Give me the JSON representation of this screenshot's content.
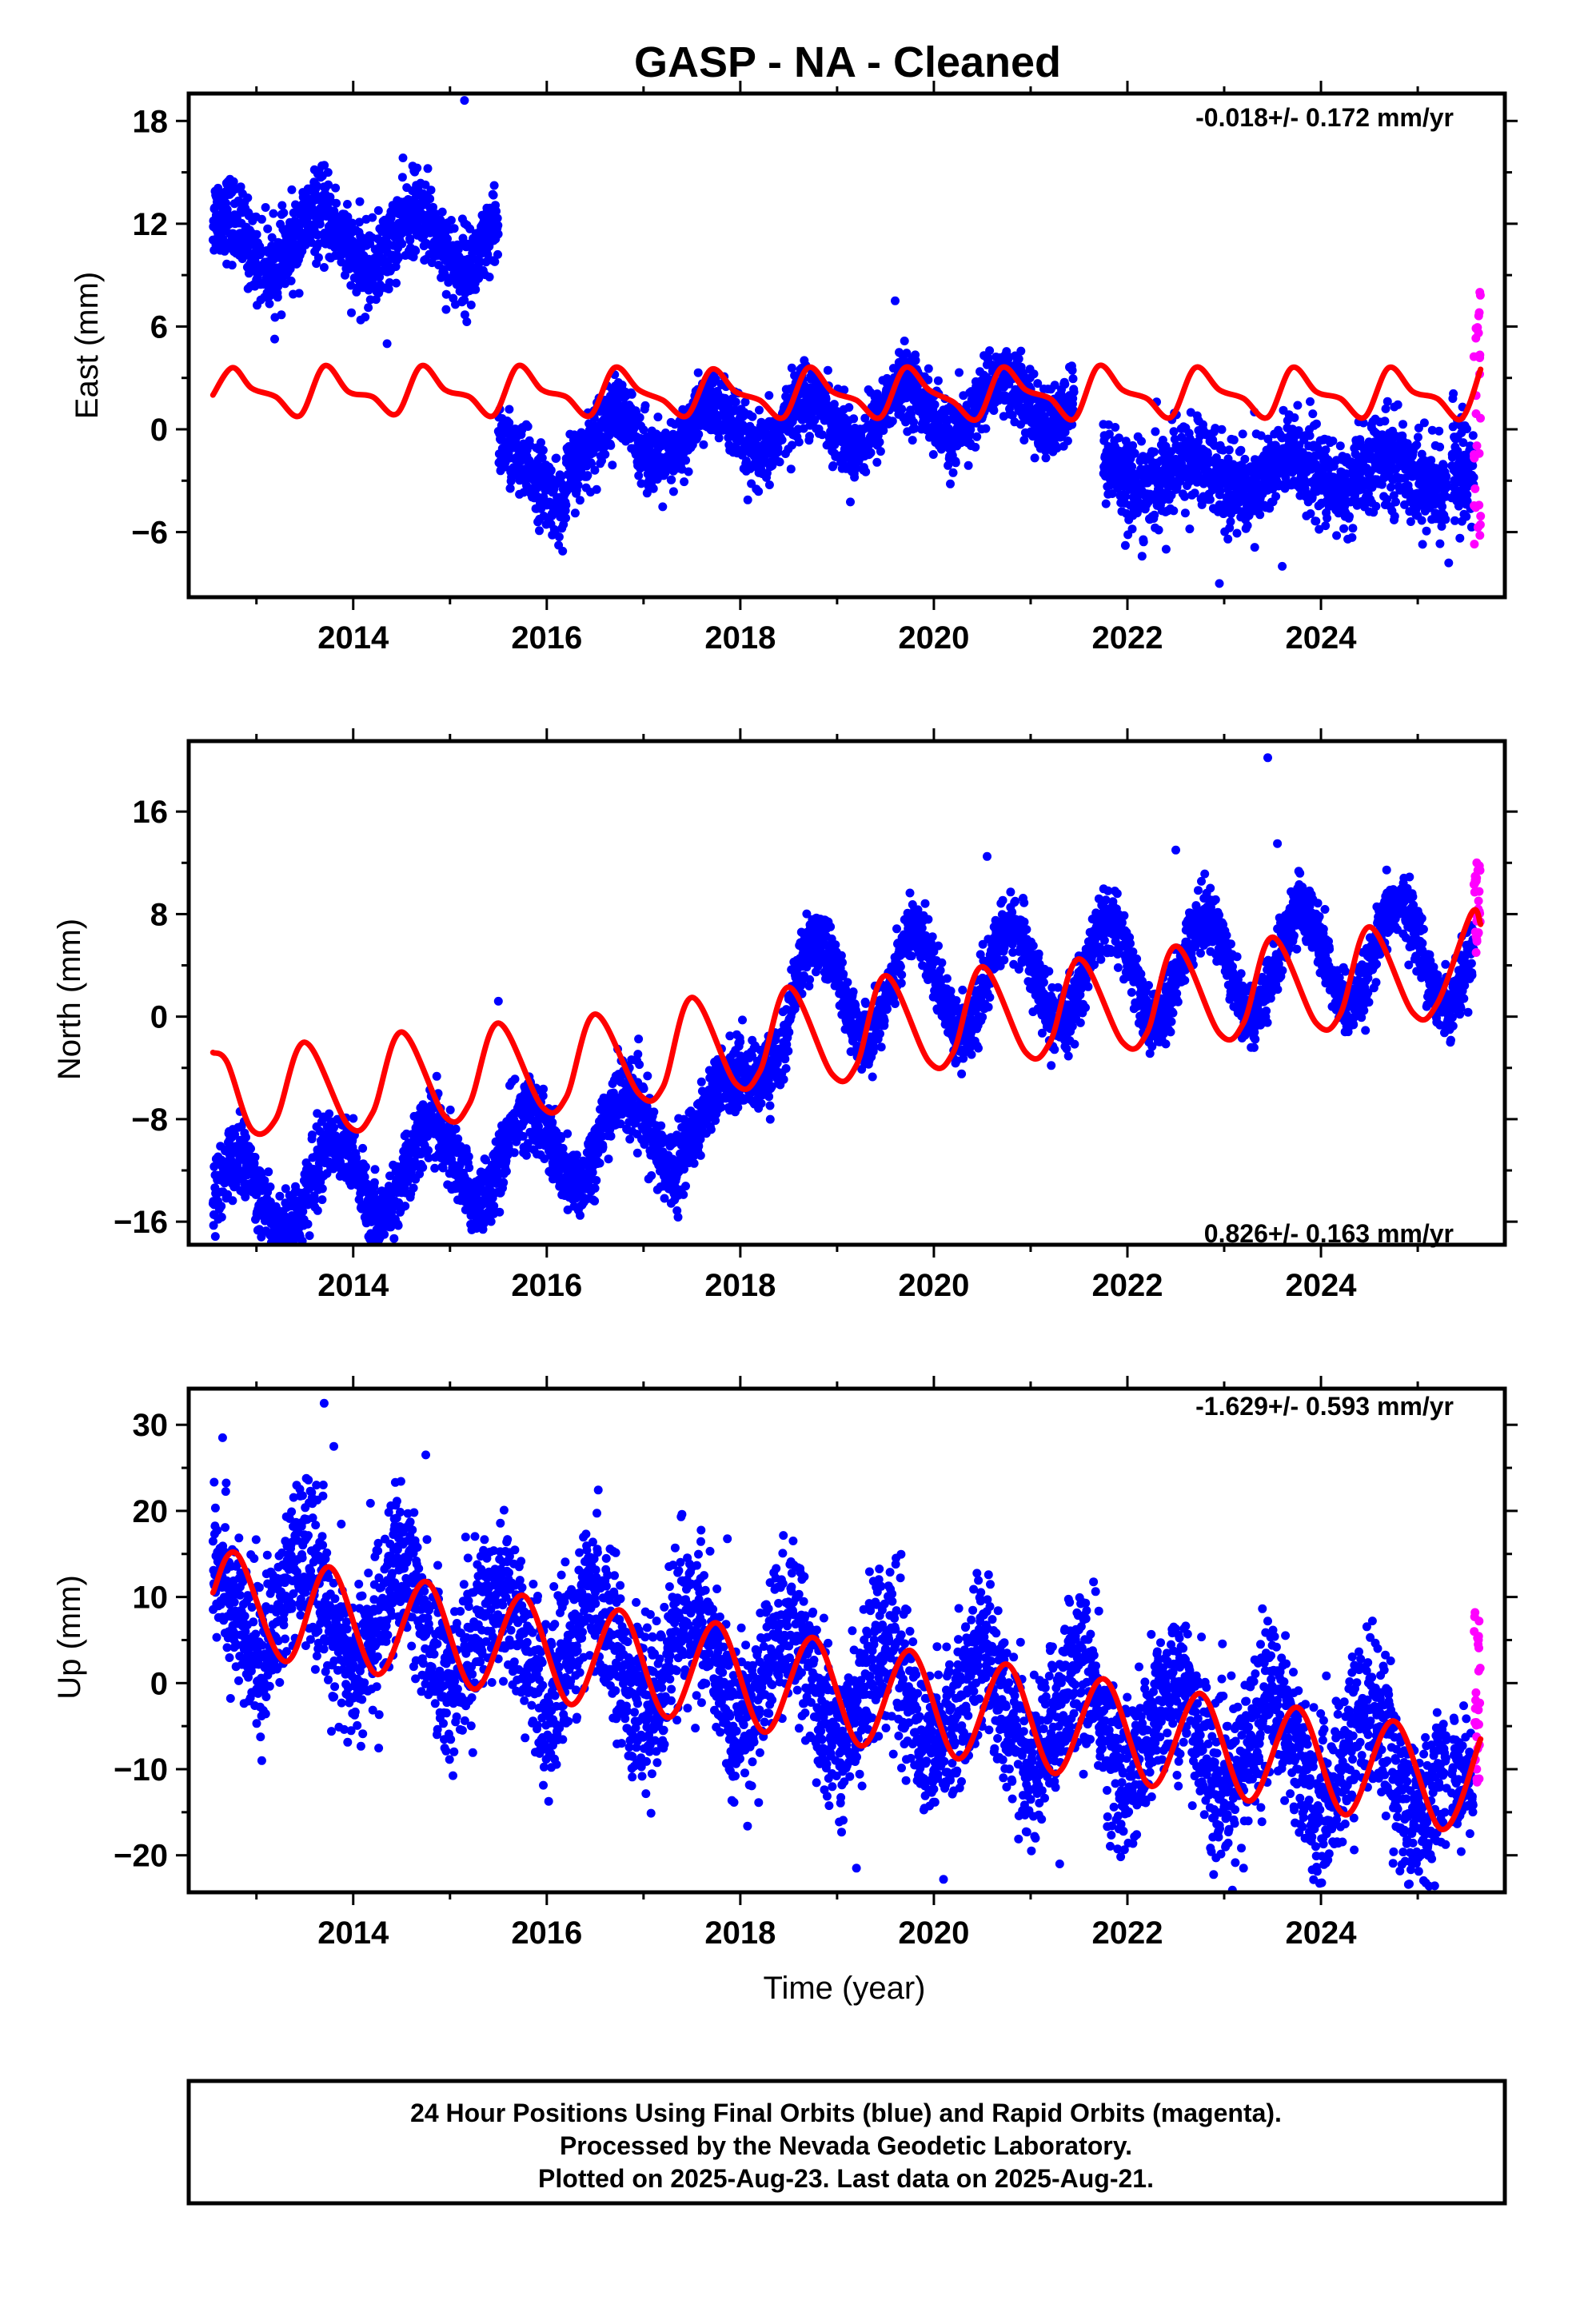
{
  "title": "GASP  - NA - Cleaned",
  "xlabel": "Time (year)",
  "footer": {
    "lines": [
      "24 Hour Positions Using Final Orbits (blue) and Rapid Orbits (magenta).",
      "Processed by the Nevada Geodetic Laboratory.",
      "Plotted on 2025-Aug-23. Last data on 2025-Aug-21."
    ]
  },
  "colors": {
    "final_orbits": "#0000ff",
    "rapid_orbits": "#ff00ff",
    "model": "#ff0000",
    "frame": "#000000"
  },
  "chart_data": [
    {
      "type": "scatter",
      "name": "east",
      "ylabel": "East (mm)",
      "rate_label": "-0.018+/- 0.172 mm/yr",
      "rate_position": "top-right",
      "xlim": [
        2012.3,
        2025.9
      ],
      "ylim": [
        -9.8,
        19.6
      ],
      "xticks": [
        2014,
        2016,
        2018,
        2020,
        2022,
        2024
      ],
      "yticks": [
        -6,
        0,
        6,
        12,
        18
      ],
      "grid": false,
      "segments": [
        {
          "start": 2012.55,
          "end": 2015.5,
          "offset": 11.0,
          "trend": 0.0,
          "amp": 1.6,
          "phase": 0.4,
          "noise": 1.2
        },
        {
          "start": 2015.5,
          "end": 2016.2,
          "offset": -0.5,
          "trend": -6.0,
          "amp": 0.0,
          "phase": 0.0,
          "noise": 1.1
        },
        {
          "start": 2016.2,
          "end": 2021.45,
          "offset": -1.0,
          "trend": 0.55,
          "amp": 1.6,
          "phase": 0.45,
          "noise": 1.0
        },
        {
          "start": 2021.75,
          "end": 2025.3,
          "offset": -2.6,
          "trend": 0.0,
          "amp": 0.9,
          "phase": 0.45,
          "noise": 1.3
        },
        {
          "start": 2025.35,
          "end": 2025.58,
          "offset": -2.3,
          "trend": 0.0,
          "amp": 0.0,
          "phase": 0.0,
          "noise": 1.6
        }
      ],
      "outliers": [
        [
          2015.15,
          19.2
        ],
        [
          2014.35,
          5.0
        ],
        [
          2019.6,
          7.5
        ],
        [
          2022.95,
          -9.0
        ],
        [
          2022.4,
          -7.0
        ],
        [
          2023.6,
          -8.0
        ],
        [
          2025.32,
          -7.8
        ]
      ],
      "rapid": {
        "start": 2025.58,
        "end": 2025.65,
        "min": -6.7,
        "max": 8.0
      },
      "model": {
        "points": [
          [
            2012.55,
            2.0
          ],
          [
            2012.75,
            3.6
          ],
          [
            2012.95,
            2.4
          ],
          [
            2013.2,
            1.9
          ],
          [
            2013.45,
            0.8
          ],
          [
            2013.7,
            3.7
          ],
          [
            2013.95,
            2.2
          ],
          [
            2014.2,
            1.9
          ],
          [
            2014.45,
            0.9
          ],
          [
            2014.7,
            3.7
          ],
          [
            2014.95,
            2.3
          ],
          [
            2015.2,
            1.9
          ],
          [
            2015.45,
            0.8
          ],
          [
            2015.7,
            3.7
          ],
          [
            2015.95,
            2.3
          ],
          [
            2016.2,
            1.9
          ],
          [
            2016.45,
            0.8
          ],
          [
            2016.7,
            3.6
          ],
          [
            2016.95,
            2.3
          ],
          [
            2017.2,
            1.7
          ],
          [
            2017.45,
            0.8
          ],
          [
            2017.7,
            3.5
          ],
          [
            2017.95,
            2.2
          ],
          [
            2018.2,
            1.7
          ],
          [
            2018.45,
            0.7
          ],
          [
            2018.7,
            3.6
          ],
          [
            2018.95,
            2.2
          ],
          [
            2019.2,
            1.7
          ],
          [
            2019.45,
            0.7
          ],
          [
            2019.7,
            3.6
          ],
          [
            2019.95,
            2.3
          ],
          [
            2020.2,
            1.6
          ],
          [
            2020.45,
            0.6
          ],
          [
            2020.7,
            3.6
          ],
          [
            2020.95,
            2.3
          ],
          [
            2021.2,
            1.8
          ],
          [
            2021.45,
            0.6
          ],
          [
            2021.7,
            3.7
          ],
          [
            2021.95,
            2.3
          ],
          [
            2022.2,
            1.8
          ],
          [
            2022.45,
            0.7
          ],
          [
            2022.7,
            3.6
          ],
          [
            2022.95,
            2.3
          ],
          [
            2023.2,
            1.8
          ],
          [
            2023.45,
            0.7
          ],
          [
            2023.7,
            3.6
          ],
          [
            2023.95,
            2.2
          ],
          [
            2024.2,
            1.8
          ],
          [
            2024.45,
            0.7
          ],
          [
            2024.7,
            3.6
          ],
          [
            2024.95,
            2.2
          ],
          [
            2025.2,
            1.8
          ],
          [
            2025.45,
            0.6
          ],
          [
            2025.65,
            3.5
          ]
        ]
      }
    },
    {
      "type": "scatter",
      "name": "north",
      "ylabel": "North (mm)",
      "rate_label": "0.826+/- 0.163 mm/yr",
      "rate_position": "bottom-right",
      "xlim": [
        2012.3,
        2025.9
      ],
      "ylim": [
        -17.8,
        21.5
      ],
      "xticks": [
        2014,
        2016,
        2018,
        2020,
        2022,
        2024
      ],
      "yticks": [
        -16,
        -8,
        0,
        8,
        16
      ],
      "grid": false,
      "segments": [
        {
          "start": 2012.55,
          "end": 2017.5,
          "offset": -14.5,
          "trend": 1.25,
          "amp": 3.2,
          "phase": 0.55,
          "noise": 1.4
        },
        {
          "start": 2017.5,
          "end": 2018.5,
          "offset": -9.0,
          "trend": 8.0,
          "amp": 1.5,
          "phase": 0.55,
          "noise": 1.3
        },
        {
          "start": 2018.5,
          "end": 2025.58,
          "offset": 2.0,
          "trend": 0.45,
          "amp": 4.0,
          "phase": 0.55,
          "noise": 1.2
        }
      ],
      "outliers": [
        [
          2023.45,
          20.2
        ],
        [
          2020.55,
          12.5
        ],
        [
          2015.5,
          1.2
        ],
        [
          2013.05,
          -17.2
        ],
        [
          2022.5,
          13.0
        ],
        [
          2023.55,
          13.5
        ]
      ],
      "rapid": {
        "start": 2025.58,
        "end": 2025.65,
        "min": 5.0,
        "max": 12.0
      },
      "model": {
        "points": [
          [
            2012.55,
            -2.8
          ],
          [
            2012.7,
            -3.6
          ],
          [
            2012.95,
            -8.8
          ],
          [
            2013.2,
            -8.0
          ],
          [
            2013.5,
            -2.0
          ],
          [
            2013.95,
            -8.5
          ],
          [
            2014.2,
            -7.5
          ],
          [
            2014.5,
            -1.2
          ],
          [
            2014.95,
            -7.8
          ],
          [
            2015.2,
            -6.8
          ],
          [
            2015.5,
            -0.5
          ],
          [
            2015.95,
            -7.0
          ],
          [
            2016.2,
            -6.3
          ],
          [
            2016.5,
            0.2
          ],
          [
            2016.95,
            -6.0
          ],
          [
            2017.2,
            -5.5
          ],
          [
            2017.5,
            1.5
          ],
          [
            2017.95,
            -5.2
          ],
          [
            2018.2,
            -4.3
          ],
          [
            2018.5,
            2.3
          ],
          [
            2018.95,
            -4.5
          ],
          [
            2019.2,
            -3.8
          ],
          [
            2019.5,
            3.2
          ],
          [
            2019.95,
            -3.5
          ],
          [
            2020.2,
            -2.8
          ],
          [
            2020.5,
            3.9
          ],
          [
            2020.95,
            -2.8
          ],
          [
            2021.2,
            -2.0
          ],
          [
            2021.5,
            4.5
          ],
          [
            2021.95,
            -2.0
          ],
          [
            2022.2,
            -1.3
          ],
          [
            2022.5,
            5.5
          ],
          [
            2022.95,
            -1.3
          ],
          [
            2023.2,
            -0.5
          ],
          [
            2023.5,
            6.2
          ],
          [
            2023.95,
            -0.5
          ],
          [
            2024.2,
            0.2
          ],
          [
            2024.5,
            7.0
          ],
          [
            2024.95,
            0.3
          ],
          [
            2025.2,
            1.0
          ],
          [
            2025.55,
            8.0
          ],
          [
            2025.65,
            7.2
          ]
        ]
      }
    },
    {
      "type": "scatter",
      "name": "up",
      "ylabel": "Up (mm)",
      "rate_label": "-1.629+/- 0.593 mm/yr",
      "rate_position": "top-right",
      "xlim": [
        2012.3,
        2025.9
      ],
      "ylim": [
        -24.3,
        34.2
      ],
      "xticks": [
        2014,
        2016,
        2018,
        2020,
        2022,
        2024
      ],
      "yticks": [
        -20,
        -10,
        0,
        10,
        20,
        30
      ],
      "grid": false,
      "segments": [
        {
          "start": 2012.55,
          "end": 2025.3,
          "offset": 10.0,
          "trend": -1.6,
          "amp": 6.0,
          "phase": 0.25,
          "noise": 4.5
        },
        {
          "start": 2025.35,
          "end": 2025.58,
          "offset": -11.0,
          "trend": 0.0,
          "amp": 0.0,
          "phase": 0.0,
          "noise": 3.0
        }
      ],
      "outliers": [
        [
          2013.7,
          32.5
        ],
        [
          2013.8,
          27.5
        ],
        [
          2012.65,
          28.5
        ],
        [
          2014.75,
          26.5
        ],
        [
          2020.1,
          -22.8
        ],
        [
          2019.2,
          -21.5
        ],
        [
          2023.2,
          -21.5
        ],
        [
          2021.3,
          -21.0
        ]
      ],
      "rapid": {
        "start": 2025.58,
        "end": 2025.65,
        "min": -11.5,
        "max": 8.2
      },
      "model": {
        "points": [
          [
            2012.55,
            10.5
          ],
          [
            2012.8,
            15.0
          ],
          [
            2013.3,
            2.5
          ],
          [
            2013.75,
            13.5
          ],
          [
            2014.25,
            1.0
          ],
          [
            2014.75,
            11.8
          ],
          [
            2015.25,
            -0.7
          ],
          [
            2015.75,
            10.2
          ],
          [
            2016.25,
            -2.5
          ],
          [
            2016.75,
            8.5
          ],
          [
            2017.25,
            -4.0
          ],
          [
            2017.75,
            7.0
          ],
          [
            2018.25,
            -5.7
          ],
          [
            2018.75,
            5.3
          ],
          [
            2019.25,
            -7.3
          ],
          [
            2019.75,
            3.8
          ],
          [
            2020.25,
            -8.8
          ],
          [
            2020.75,
            2.2
          ],
          [
            2021.25,
            -10.5
          ],
          [
            2021.75,
            0.5
          ],
          [
            2022.25,
            -12.0
          ],
          [
            2022.75,
            -1.2
          ],
          [
            2023.25,
            -13.7
          ],
          [
            2023.75,
            -2.8
          ],
          [
            2024.25,
            -15.3
          ],
          [
            2024.75,
            -4.4
          ],
          [
            2025.25,
            -17.0
          ],
          [
            2025.65,
            -6.5
          ]
        ]
      }
    }
  ]
}
